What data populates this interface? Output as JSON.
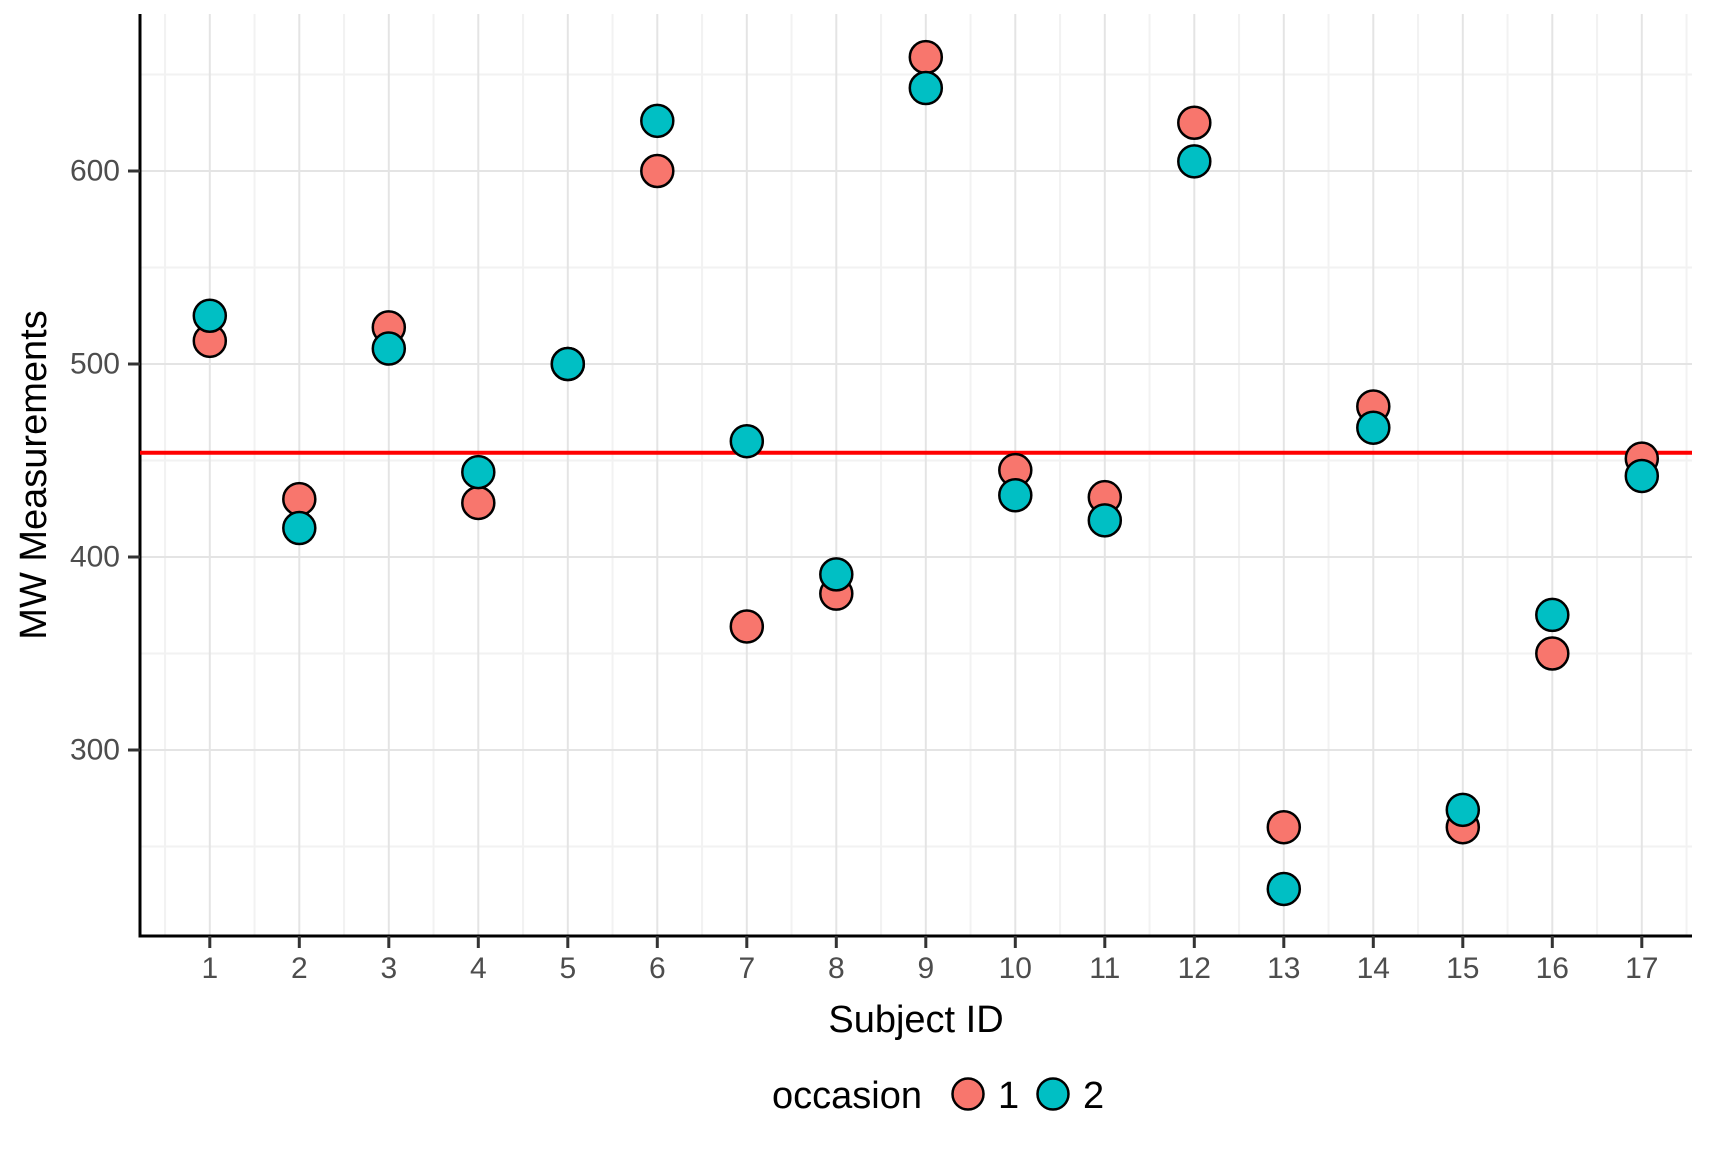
{
  "axes": {
    "y_title": "MW Measurements",
    "x_title": "Subject ID",
    "y_tick_labels": [
      "300",
      "400",
      "500",
      "600"
    ],
    "y_tick_values": [
      300,
      400,
      500,
      600
    ],
    "x_tick_labels": [
      "1",
      "2",
      "3",
      "4",
      "5",
      "6",
      "7",
      "8",
      "9",
      "10",
      "11",
      "12",
      "13",
      "14",
      "15",
      "16",
      "17"
    ],
    "x_tick_values": [
      1,
      2,
      3,
      4,
      5,
      6,
      7,
      8,
      9,
      10,
      11,
      12,
      13,
      14,
      15,
      16,
      17
    ]
  },
  "legend": {
    "title": "occasion",
    "position": "bottom",
    "items": [
      {
        "label": "1",
        "color": "#F8766D"
      },
      {
        "label": "2",
        "color": "#00BFC4"
      }
    ]
  },
  "colors": {
    "occ1": "#F8766D",
    "occ2": "#00BFC4",
    "point_stroke": "#000000",
    "reference_line": "#FF0000",
    "grid_major": "#E4E4E4",
    "grid_minor": "#F2F2F2",
    "axis_line": "#000000",
    "tick_mark": "#333333",
    "tick_label": "#4D4D4D",
    "background": "#FFFFFF"
  },
  "chart_data": {
    "type": "scatter",
    "title": "",
    "xlabel": "Subject ID",
    "ylabel": "MW Measurements",
    "categories": [
      1,
      2,
      3,
      4,
      5,
      6,
      7,
      8,
      9,
      10,
      11,
      12,
      13,
      14,
      15,
      16,
      17
    ],
    "series": [
      {
        "name": "1",
        "color": "#F8766D",
        "values": [
          512,
          430,
          519,
          428,
          500,
          600,
          364,
          381,
          659,
          445,
          431,
          625,
          260,
          478,
          260,
          350,
          451
        ]
      },
      {
        "name": "2",
        "color": "#00BFC4",
        "values": [
          525,
          415,
          508,
          444,
          500,
          626,
          460,
          391,
          643,
          432,
          419,
          605,
          228,
          467,
          269,
          370,
          442
        ]
      }
    ],
    "reference_line": {
      "value": 454,
      "color": "#FF0000",
      "note": "horizontal mean line"
    },
    "ylim": [
      204,
      681
    ],
    "xlim": [
      0.2,
      17.8
    ],
    "y_major_gridlines": [
      300,
      400,
      500,
      600
    ],
    "y_minor_gridlines": [
      250,
      350,
      450,
      550,
      650
    ],
    "grid": true,
    "legend_position": "bottom",
    "point_radius_px": 16
  }
}
